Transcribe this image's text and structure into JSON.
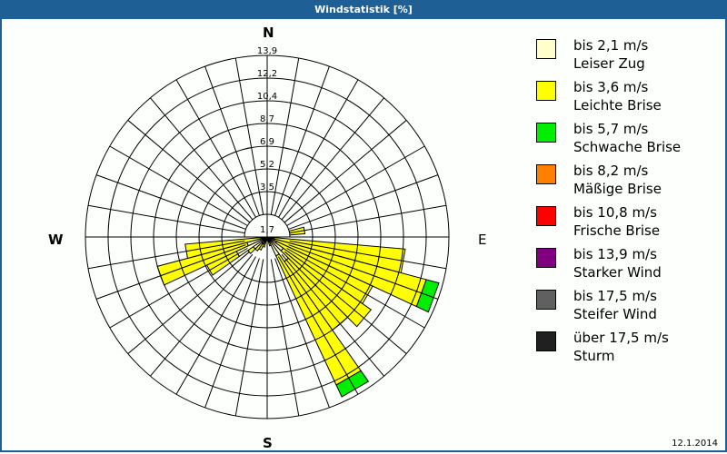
{
  "window": {
    "title": "Windstatistik [%]"
  },
  "footer": {
    "date": "12.1.2014"
  },
  "compass": {
    "n": "N",
    "e": "E",
    "s": "S",
    "w": "W"
  },
  "chart_data": {
    "type": "polar-stacked-bar (wind rose)",
    "title": "Windstatistik [%]",
    "radial_ticks": [
      "1,7",
      "3,5",
      "5,2",
      "6,9",
      "8,7",
      "10,4",
      "12,2",
      "13,9"
    ],
    "radial_max": 13.9,
    "sector_width_deg": 10,
    "categories_deg": [
      80,
      90,
      100,
      110,
      120,
      130,
      140,
      150,
      160,
      200,
      210,
      220,
      230,
      240,
      250,
      260
    ],
    "series": [
      {
        "name": "bis 2,1 m/s Leiser Zug",
        "color": "#ffffcc",
        "values": [
          0.6,
          0.3,
          0.5,
          0.6,
          0.8,
          1.5,
          2.3,
          1.6,
          0.3,
          0.5,
          0.6,
          0.6,
          1.3,
          2.6,
          1.6,
          0.5
        ]
      },
      {
        "name": "bis 3,6 m/s Leichte Brise",
        "color": "#ffff00",
        "values": [
          2.3,
          0.3,
          10.1,
          12.0,
          8.1,
          8.2,
          6.4,
          10.9,
          0.4,
          0.3,
          0.5,
          0.7,
          0.5,
          2.5,
          7.1,
          5.8
        ]
      },
      {
        "name": "bis 5,7 m/s Schwache Brise",
        "color": "#00ee00",
        "values": [
          0,
          0,
          0,
          1.0,
          0,
          0,
          0,
          1.0,
          0,
          0,
          0,
          0,
          0,
          0,
          0,
          0
        ]
      },
      {
        "name": "bis 8,2 m/s Mäßige Brise",
        "color": "#ff8000",
        "values": [
          0,
          0,
          0,
          0,
          0,
          0,
          0,
          0,
          0,
          0,
          0,
          0,
          0,
          0,
          0,
          0
        ]
      },
      {
        "name": "bis 10,8 m/s Frische Brise",
        "color": "#ff0000",
        "values": [
          0,
          0,
          0,
          0,
          0,
          0,
          0,
          0,
          0,
          0,
          0,
          0,
          0,
          0,
          0,
          0
        ]
      },
      {
        "name": "bis 13,9 m/s Starker Wind",
        "color": "#800080",
        "values": [
          0,
          0,
          0,
          0,
          0,
          0,
          0,
          0,
          0,
          0,
          0,
          0,
          0,
          0,
          0,
          0
        ]
      },
      {
        "name": "bis 17,5 m/s Steifer Wind",
        "color": "#606060",
        "values": [
          0,
          0,
          0,
          0,
          0,
          0,
          0,
          0,
          0,
          0,
          0,
          0,
          0,
          0,
          0,
          0
        ]
      },
      {
        "name": "über 17,5 m/s Sturm",
        "color": "#202020",
        "values": [
          0,
          0,
          0,
          0,
          0,
          0,
          0,
          0,
          0,
          0,
          0,
          0,
          0,
          0,
          0,
          0
        ]
      }
    ],
    "legend_position": "right"
  },
  "legend": [
    {
      "range": "bis 2,1 m/s",
      "name": "Leiser Zug",
      "color": "#ffffcc"
    },
    {
      "range": "bis 3,6 m/s",
      "name": "Leichte Brise",
      "color": "#ffff00"
    },
    {
      "range": "bis 5,7 m/s",
      "name": "Schwache Brise",
      "color": "#00ee00"
    },
    {
      "range": "bis 8,2 m/s",
      "name": "Mäßige Brise",
      "color": "#ff8000"
    },
    {
      "range": "bis 10,8 m/s",
      "name": "Frische Brise",
      "color": "#ff0000"
    },
    {
      "range": "bis 13,9 m/s",
      "name": "Starker Wind",
      "color": "#800080"
    },
    {
      "range": "bis 17,5 m/s",
      "name": "Steifer Wind",
      "color": "#606060"
    },
    {
      "range": "über 17,5 m/s",
      "name": "Sturm",
      "color": "#202020"
    }
  ]
}
